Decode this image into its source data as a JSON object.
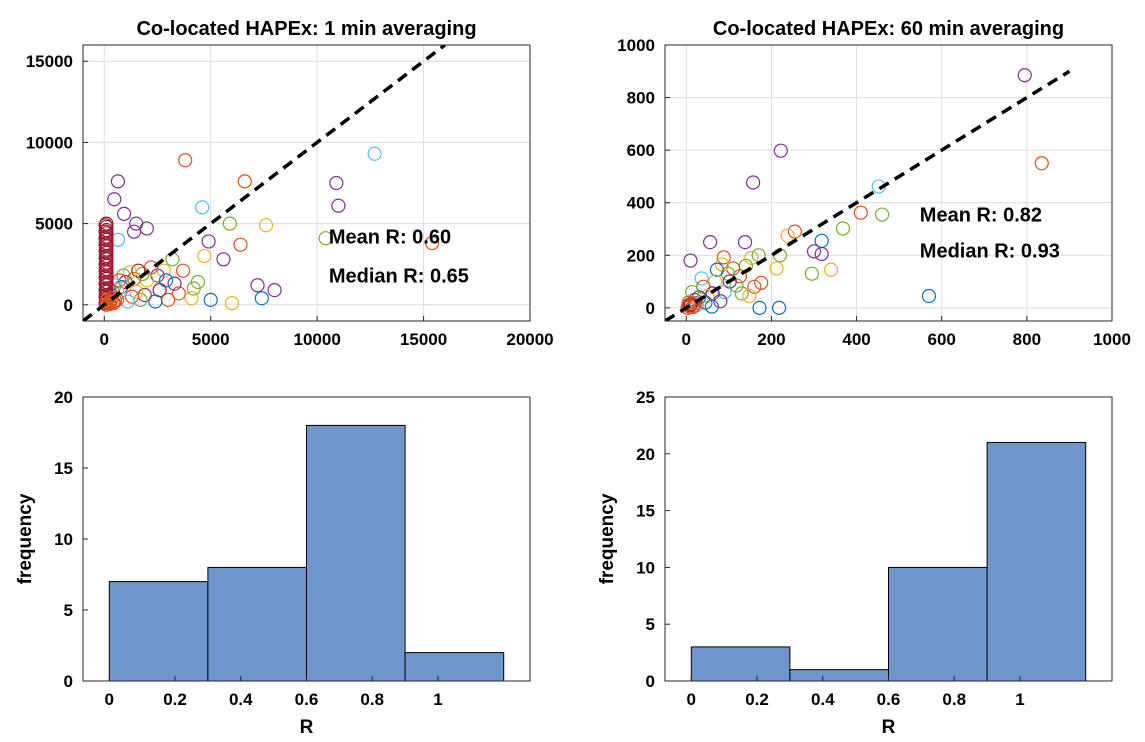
{
  "chart_data": [
    {
      "type": "scatter",
      "title": "Co-located HAPEx: 1 min averaging",
      "xlabel": "",
      "ylabel": "",
      "xlim": [
        -1000,
        20000
      ],
      "ylim": [
        -1000,
        16000
      ],
      "xticks": [
        0,
        5000,
        10000,
        15000,
        20000
      ],
      "yticks": [
        0,
        5000,
        10000,
        15000
      ],
      "grid": true,
      "reference_line": {
        "from": [
          -1000,
          -1000
        ],
        "to": [
          16000,
          16000
        ],
        "style": "dashed",
        "color": "#000000"
      },
      "annotations": [
        "Mean R: 0.60",
        "Median R: 0.65"
      ],
      "marker": "open-circle",
      "colors": [
        "#0072bd",
        "#d95319",
        "#edb120",
        "#7e2f8e",
        "#77ac30",
        "#4dbeee",
        "#a2142f"
      ],
      "points": [
        [
          640,
          7600,
          3
        ],
        [
          470,
          6500,
          3
        ],
        [
          3800,
          8900,
          1
        ],
        [
          6600,
          7600,
          1
        ],
        [
          12700,
          9300,
          5
        ],
        [
          10900,
          7500,
          3
        ],
        [
          11000,
          6100,
          3
        ],
        [
          4600,
          6000,
          5
        ],
        [
          5900,
          5000,
          4
        ],
        [
          7600,
          4900,
          2
        ],
        [
          10400,
          4100,
          4
        ],
        [
          15400,
          3800,
          1
        ],
        [
          930,
          5600,
          3
        ],
        [
          1500,
          5000,
          3
        ],
        [
          2000,
          4700,
          3
        ],
        [
          1400,
          4500,
          3
        ],
        [
          640,
          4000,
          5
        ],
        [
          4900,
          3900,
          3
        ],
        [
          6400,
          3700,
          1
        ],
        [
          5600,
          2800,
          3
        ],
        [
          7200,
          1200,
          3
        ],
        [
          8000,
          900,
          3
        ],
        [
          7400,
          400,
          0
        ],
        [
          5000,
          300,
          0
        ],
        [
          6000,
          100,
          2
        ],
        [
          4400,
          1400,
          4
        ],
        [
          3200,
          2800,
          4
        ],
        [
          2800,
          2100,
          2
        ],
        [
          2500,
          1800,
          3
        ],
        [
          2200,
          2300,
          1
        ],
        [
          2000,
          1500,
          2
        ],
        [
          1800,
          1900,
          4
        ],
        [
          1600,
          2100,
          6
        ],
        [
          1400,
          1600,
          1
        ],
        [
          1200,
          2000,
          2
        ],
        [
          1000,
          1400,
          3
        ],
        [
          900,
          1800,
          4
        ],
        [
          800,
          1100,
          0
        ],
        [
          700,
          1500,
          1
        ],
        [
          600,
          900,
          2
        ],
        [
          500,
          1200,
          5
        ],
        [
          400,
          800,
          1
        ],
        [
          300,
          600,
          3
        ],
        [
          250,
          1000,
          4
        ],
        [
          200,
          400,
          2
        ],
        [
          3500,
          700,
          1
        ],
        [
          4100,
          400,
          2
        ],
        [
          3000,
          300,
          1
        ],
        [
          2600,
          900,
          6
        ],
        [
          2400,
          200,
          0
        ],
        [
          1900,
          600,
          3
        ],
        [
          1700,
          300,
          4
        ],
        [
          1500,
          800,
          2
        ],
        [
          1300,
          500,
          1
        ],
        [
          1100,
          200,
          5
        ],
        [
          4700,
          3000,
          2
        ],
        [
          3700,
          2100,
          1
        ],
        [
          4200,
          1000,
          4
        ],
        [
          3300,
          1300,
          3
        ],
        [
          2900,
          1500,
          0
        ],
        [
          100,
          5000,
          6
        ],
        [
          100,
          4800,
          6
        ],
        [
          100,
          4600,
          6
        ],
        [
          100,
          4400,
          6
        ],
        [
          100,
          4200,
          6
        ],
        [
          100,
          4000,
          6
        ],
        [
          100,
          3800,
          6
        ],
        [
          100,
          3600,
          6
        ],
        [
          100,
          3400,
          6
        ],
        [
          100,
          3200,
          6
        ],
        [
          100,
          3000,
          6
        ],
        [
          100,
          2800,
          6
        ],
        [
          100,
          2600,
          6
        ],
        [
          100,
          2400,
          6
        ],
        [
          100,
          2200,
          6
        ],
        [
          100,
          2000,
          6
        ],
        [
          100,
          1800,
          6
        ],
        [
          100,
          1600,
          6
        ],
        [
          100,
          1400,
          6
        ],
        [
          100,
          1200,
          6
        ],
        [
          100,
          1000,
          6
        ],
        [
          100,
          800,
          6
        ],
        [
          100,
          600,
          6
        ],
        [
          100,
          400,
          6
        ],
        [
          100,
          200,
          6
        ],
        [
          60,
          4900,
          6
        ],
        [
          60,
          4500,
          6
        ],
        [
          60,
          4100,
          6
        ],
        [
          60,
          3700,
          6
        ],
        [
          60,
          3300,
          6
        ],
        [
          60,
          2900,
          6
        ],
        [
          60,
          2500,
          6
        ],
        [
          60,
          2100,
          6
        ],
        [
          60,
          1700,
          6
        ],
        [
          60,
          1300,
          6
        ],
        [
          60,
          900,
          6
        ],
        [
          60,
          500,
          6
        ],
        [
          60,
          100,
          6
        ],
        [
          200,
          100,
          1
        ],
        [
          300,
          200,
          1
        ],
        [
          400,
          150,
          1
        ],
        [
          150,
          300,
          1
        ],
        [
          500,
          250,
          1
        ],
        [
          250,
          50,
          1
        ],
        [
          350,
          400,
          1
        ],
        [
          450,
          100,
          1
        ],
        [
          100,
          0,
          1
        ],
        [
          600,
          300,
          1
        ]
      ]
    },
    {
      "type": "scatter",
      "title": "Co-located HAPEx: 60 min averaging",
      "xlabel": "",
      "ylabel": "",
      "xlim": [
        -50,
        1000
      ],
      "ylim": [
        -50,
        1000
      ],
      "xticks": [
        0,
        200,
        400,
        600,
        800,
        1000
      ],
      "yticks": [
        0,
        200,
        400,
        600,
        800,
        1000
      ],
      "grid": true,
      "reference_line": {
        "from": [
          -50,
          -50
        ],
        "to": [
          900,
          900
        ],
        "style": "dashed",
        "color": "#000000"
      },
      "annotations": [
        "Mean R: 0.82",
        "Median R: 0.93"
      ],
      "marker": "open-circle",
      "colors": [
        "#0072bd",
        "#d95319",
        "#edb120",
        "#7e2f8e",
        "#77ac30",
        "#4dbeee",
        "#a2142f"
      ],
      "points": [
        [
          795,
          885,
          3
        ],
        [
          835,
          550,
          1
        ],
        [
          222,
          598,
          3
        ],
        [
          157,
          477,
          3
        ],
        [
          452,
          462,
          5
        ],
        [
          410,
          362,
          1
        ],
        [
          460,
          355,
          4
        ],
        [
          368,
          302,
          4
        ],
        [
          340,
          145,
          2
        ],
        [
          295,
          130,
          4
        ],
        [
          570,
          45,
          0
        ],
        [
          318,
          255,
          0
        ],
        [
          300,
          215,
          3
        ],
        [
          318,
          205,
          3
        ],
        [
          255,
          290,
          1
        ],
        [
          238,
          275,
          2
        ],
        [
          220,
          200,
          4
        ],
        [
          212,
          150,
          2
        ],
        [
          218,
          0,
          0
        ],
        [
          172,
          0,
          0
        ],
        [
          138,
          250,
          3
        ],
        [
          170,
          200,
          4
        ],
        [
          153,
          190,
          2
        ],
        [
          126,
          120,
          1
        ],
        [
          140,
          160,
          4
        ],
        [
          110,
          150,
          1
        ],
        [
          88,
          192,
          1
        ],
        [
          84,
          165,
          2
        ],
        [
          98,
          130,
          4
        ],
        [
          72,
          145,
          0
        ],
        [
          68,
          100,
          2
        ],
        [
          118,
          85,
          4
        ],
        [
          130,
          55,
          4
        ],
        [
          160,
          80,
          1
        ],
        [
          176,
          95,
          1
        ],
        [
          148,
          45,
          2
        ],
        [
          102,
          100,
          3
        ],
        [
          90,
          60,
          5
        ],
        [
          56,
          250,
          3
        ],
        [
          36,
          112,
          5
        ],
        [
          40,
          80,
          1
        ],
        [
          62,
          55,
          3
        ],
        [
          50,
          45,
          2
        ],
        [
          30,
          40,
          0
        ],
        [
          20,
          30,
          3
        ],
        [
          10,
          180,
          3
        ],
        [
          14,
          60,
          4
        ],
        [
          25,
          10,
          5
        ],
        [
          45,
          20,
          0
        ],
        [
          60,
          5,
          0
        ],
        [
          80,
          25,
          3
        ],
        [
          5,
          10,
          1
        ],
        [
          8,
          5,
          1
        ],
        [
          12,
          15,
          1
        ],
        [
          3,
          0,
          1
        ],
        [
          18,
          8,
          1
        ],
        [
          6,
          20,
          1
        ],
        [
          15,
          3,
          1
        ],
        [
          10,
          12,
          6
        ],
        [
          22,
          18,
          1
        ]
      ]
    },
    {
      "type": "bar",
      "xlabel": "R",
      "ylabel": "frequency",
      "bin_edges": [
        0,
        0.3,
        0.6,
        0.9,
        1.2
      ],
      "values": [
        7,
        8,
        18,
        2
      ],
      "xlim": [
        -0.08,
        1.28
      ],
      "ylim": [
        0,
        20
      ],
      "xticks": [
        0,
        0.2,
        0.4,
        0.6,
        0.8,
        1
      ],
      "yticks": [
        0,
        5,
        10,
        15,
        20
      ],
      "grid": false,
      "color": "#6f96cc"
    },
    {
      "type": "bar",
      "xlabel": "R",
      "ylabel": "frequency",
      "bin_edges": [
        0,
        0.3,
        0.6,
        0.9,
        1.2
      ],
      "values": [
        3,
        1,
        10,
        21
      ],
      "xlim": [
        -0.08,
        1.28
      ],
      "ylim": [
        0,
        25
      ],
      "xticks": [
        0,
        0.2,
        0.4,
        0.6,
        0.8,
        1
      ],
      "yticks": [
        0,
        5,
        10,
        15,
        20,
        25
      ],
      "grid": false,
      "color": "#6f96cc"
    }
  ]
}
